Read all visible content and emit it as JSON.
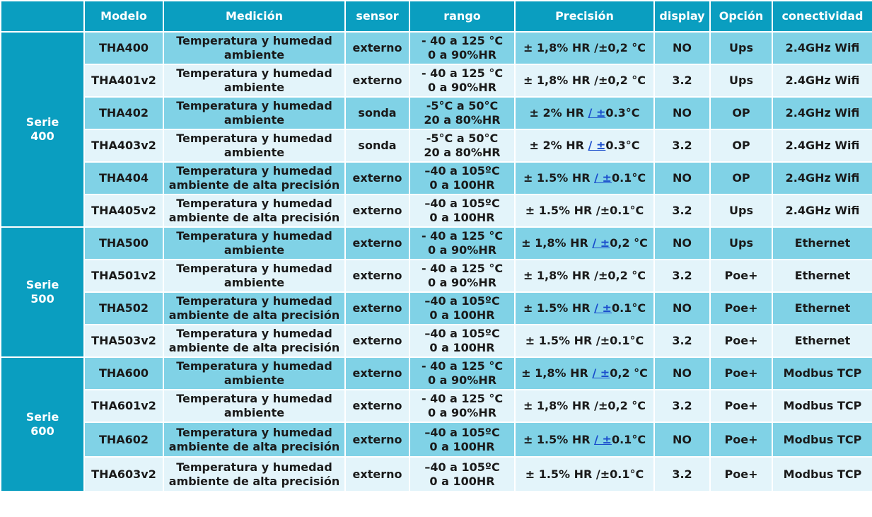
{
  "headers": [
    "",
    "Modelo",
    "Medición",
    "sensor",
    "rango",
    "Precisión",
    "display",
    "Opción",
    "conectividad"
  ],
  "series": [
    {
      "name_line1": "Serie",
      "name_line2": "400",
      "rows": [
        {
          "model": "THA400",
          "med1": "Temperatura y humedad",
          "med2": "ambiente",
          "sensor": "externo",
          "r1": "- 40 a 125 °C",
          "r2": "0 a 90%HR",
          "p1": "± 1,8% HR /±0,2 °C",
          "p_link": "",
          "p2": "",
          "display": "NO",
          "opt": "Ups",
          "con": "2.4GHz Wifi"
        },
        {
          "model": "THA401v2",
          "med1": "Temperatura y humedad",
          "med2": "ambiente",
          "sensor": "externo",
          "r1": "- 40 a 125 °C",
          "r2": "0 a 90%HR",
          "p1": "± 1,8% HR /±0,2 °C",
          "p_link": "",
          "p2": "",
          "display": "3.2",
          "opt": "Ups",
          "con": "2.4GHz Wifi"
        },
        {
          "model": "THA402",
          "med1": "Temperatura y humedad",
          "med2": "ambiente",
          "sensor": "sonda",
          "r1": "-5°C a 50°C",
          "r2": "20 a 80%HR",
          "p1": "± 2% HR ",
          "p_link": "/ ±",
          "p2": "0.3°C",
          "display": "NO",
          "opt": "OP",
          "con": "2.4GHz Wifi"
        },
        {
          "model": "THA403v2",
          "med1": "Temperatura y humedad",
          "med2": "ambiente",
          "sensor": "sonda",
          "r1": "-5°C a 50°C",
          "r2": "20 a 80%HR",
          "p1": "± 2% HR ",
          "p_link": "/ ±",
          "p2": "0.3°C",
          "display": "3.2",
          "opt": "OP",
          "con": "2.4GHz Wifi"
        },
        {
          "model": "THA404",
          "med1": "Temperatura y humedad",
          "med2": "ambiente de alta precisión",
          "sensor": "externo",
          "r1": "–40 a 105ºC",
          "r2": "0 a 100HR",
          "p1": "± 1.5% HR ",
          "p_link": "/ ±",
          "p2": "0.1°C",
          "display": "NO",
          "opt": "OP",
          "con": "2.4GHz Wifi"
        },
        {
          "model": "THA405v2",
          "med1": "Temperatura y humedad",
          "med2": "ambiente de alta precisión",
          "sensor": "externo",
          "r1": "–40 a 105ºC",
          "r2": "0 a 100HR",
          "p1": "± 1.5% HR /±0.1°C",
          "p_link": "",
          "p2": "",
          "display": "3.2",
          "opt": "Ups",
          "con": "2.4GHz Wifi"
        }
      ]
    },
    {
      "name_line1": "Serie",
      "name_line2": "500",
      "rows": [
        {
          "model": "THA500",
          "med1": "Temperatura y humedad",
          "med2": "ambiente",
          "sensor": "externo",
          "r1": "- 40 a 125 °C",
          "r2": "0 a 90%HR",
          "p1": "± 1,8% HR ",
          "p_link": "/ ±",
          "p2": "0,2 °C",
          "display": "NO",
          "opt": "Ups",
          "con": "Ethernet"
        },
        {
          "model": "THA501v2",
          "med1": "Temperatura y humedad",
          "med2": "ambiente",
          "sensor": "externo",
          "r1": "- 40 a 125 °C",
          "r2": "0 a 90%HR",
          "p1": "± 1,8% HR /±0,2 °C",
          "p_link": "",
          "p2": "",
          "display": "3.2",
          "opt": "Poe+",
          "con": "Ethernet"
        },
        {
          "model": "THA502",
          "med1": "Temperatura y humedad",
          "med2": "ambiente de alta precisión",
          "sensor": "externo",
          "r1": "–40 a 105ºC",
          "r2": "0 a 100HR",
          "p1": "± 1.5% HR ",
          "p_link": "/ ±",
          "p2": "0.1°C",
          "display": "NO",
          "opt": "Poe+",
          "con": "Ethernet"
        },
        {
          "model": "THA503v2",
          "med1": "Temperatura y humedad",
          "med2": "ambiente de alta precisión",
          "sensor": "externo",
          "r1": "–40 a 105ºC",
          "r2": "0 a 100HR",
          "p1": "± 1.5% HR /±0.1°C",
          "p_link": "",
          "p2": "",
          "display": "3.2",
          "opt": "Poe+",
          "con": "Ethernet"
        }
      ]
    },
    {
      "name_line1": "Serie",
      "name_line2": "600",
      "rows": [
        {
          "model": "THA600",
          "med1": "Temperatura y humedad",
          "med2": "ambiente",
          "sensor": "externo",
          "r1": "- 40 a 125 °C",
          "r2": "0 a 90%HR",
          "p1": "± 1,8% HR ",
          "p_link": "/ ±",
          "p2": "0,2 °C",
          "display": "NO",
          "opt": "Poe+",
          "con": "Modbus TCP"
        },
        {
          "model": "THA601v2",
          "med1": "Temperatura y humedad",
          "med2": "ambiente",
          "sensor": "externo",
          "r1": "- 40 a 125 °C",
          "r2": "0 a 90%HR",
          "p1": "± 1,8% HR /±0,2 °C",
          "p_link": "",
          "p2": "",
          "display": "3.2",
          "opt": "Poe+",
          "con": "Modbus TCP"
        },
        {
          "model": "THA602",
          "med1": "Temperatura y humedad",
          "med2": "ambiente de alta precisión",
          "sensor": "externo",
          "r1": "–40 a 105ºC",
          "r2": "0 a 100HR",
          "p1": "± 1.5% HR ",
          "p_link": "/ ±",
          "p2": "0.1°C",
          "display": "NO",
          "opt": "Poe+",
          "con": "Modbus TCP"
        },
        {
          "model": "THA603v2",
          "med1": "Temperatura y humedad",
          "med2": "ambiente de alta precisión",
          "sensor": "externo",
          "r1": "–40 a 105ºC",
          "r2": "0 a 100HR",
          "p1": "± 1.5% HR /±0.1°C",
          "p_link": "",
          "p2": "",
          "display": "3.2",
          "opt": "Poe+",
          "con": "Modbus TCP"
        }
      ]
    }
  ]
}
